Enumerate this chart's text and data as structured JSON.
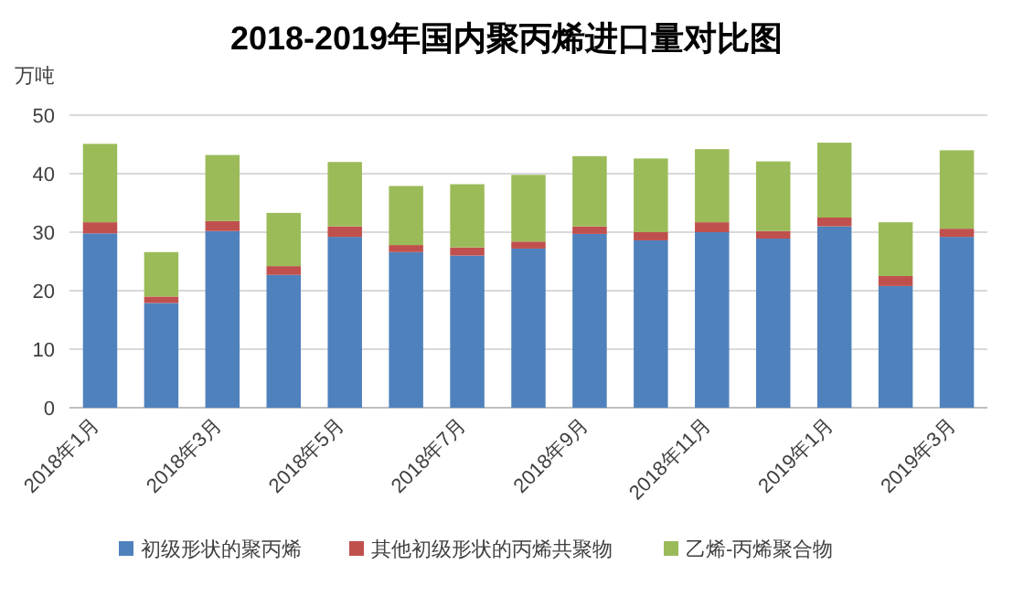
{
  "chart_data": {
    "type": "bar",
    "title": "2018-2019年国内聚丙烯进口量对比图",
    "ylabel": "万吨",
    "stacked": true,
    "categories": [
      "2018年1月",
      null,
      "2018年3月",
      null,
      "2018年5月",
      null,
      "2018年7月",
      null,
      "2018年9月",
      null,
      "2018年11月",
      null,
      "2019年1月",
      null,
      "2019年3月"
    ],
    "series": [
      {
        "name": "初级形状的聚丙烯",
        "color": "#4f81bd",
        "values": [
          29.8,
          17.9,
          30.2,
          22.7,
          29.2,
          26.6,
          26.0,
          27.2,
          29.7,
          28.6,
          30.0,
          28.9,
          31.0,
          20.8,
          29.2
        ]
      },
      {
        "name": "其他初级形状的丙烯共聚物",
        "color": "#c0504d",
        "values": [
          1.9,
          1.1,
          1.7,
          1.5,
          1.8,
          1.2,
          1.4,
          1.2,
          1.3,
          1.4,
          1.7,
          1.3,
          1.5,
          1.7,
          1.4
        ]
      },
      {
        "name": "乙烯-丙烯聚合物",
        "color": "#9bbb59",
        "values": [
          13.4,
          7.6,
          11.3,
          9.1,
          11.0,
          10.1,
          10.8,
          11.4,
          12.0,
          12.6,
          12.5,
          11.9,
          12.8,
          9.2,
          13.4
        ]
      }
    ],
    "ylim": [
      0,
      50
    ],
    "yticks": [
      0,
      10,
      20,
      30,
      40,
      50
    ],
    "grid": "y",
    "legend": "bottom"
  }
}
